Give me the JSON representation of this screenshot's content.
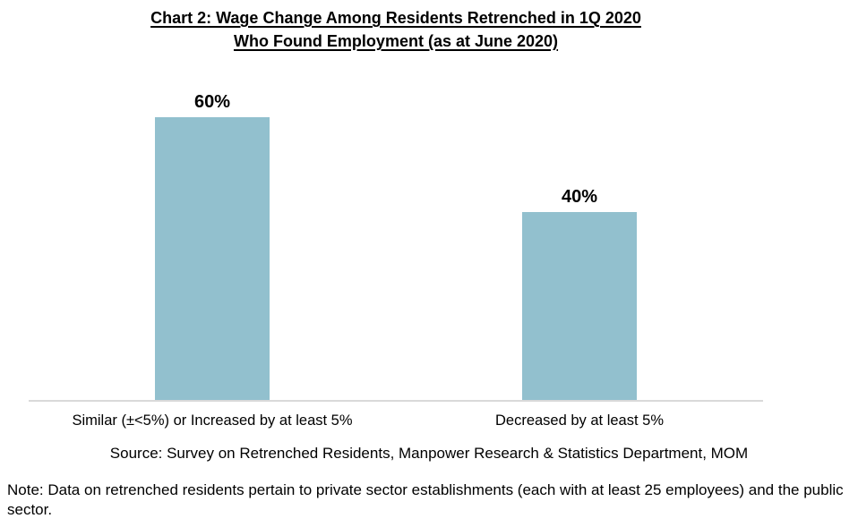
{
  "chart_data": {
    "type": "bar",
    "title": "Chart 2: Wage Change Among Residents Retrenched in 1Q 2020 Who Found Employment (as at June 2020)",
    "title_lines": [
      "Chart 2: Wage Change Among Residents Retrenched in 1Q 2020",
      "Who Found Employment (as at June 2020)"
    ],
    "categories": [
      "Similar (±<5%) or Increased by at least 5%",
      "Decreased by at least 5%"
    ],
    "values": [
      60,
      40
    ],
    "value_labels": [
      "60%",
      "40%"
    ],
    "unit": "%",
    "xlabel": "",
    "ylabel": "",
    "ylim": [
      0,
      60
    ],
    "grid": false,
    "legend": false,
    "value_axis_visible": false,
    "bar_color": "#92C0CE",
    "axis_line_color": "#D9D9D9",
    "label_color": "#000000"
  },
  "source_text": "Source: Survey on Retrenched Residents, Manpower Research & Statistics Department, MOM",
  "note_text": "Note: Data on retrenched residents pertain to private sector establishments (each with at least 25 employees) and the public sector."
}
